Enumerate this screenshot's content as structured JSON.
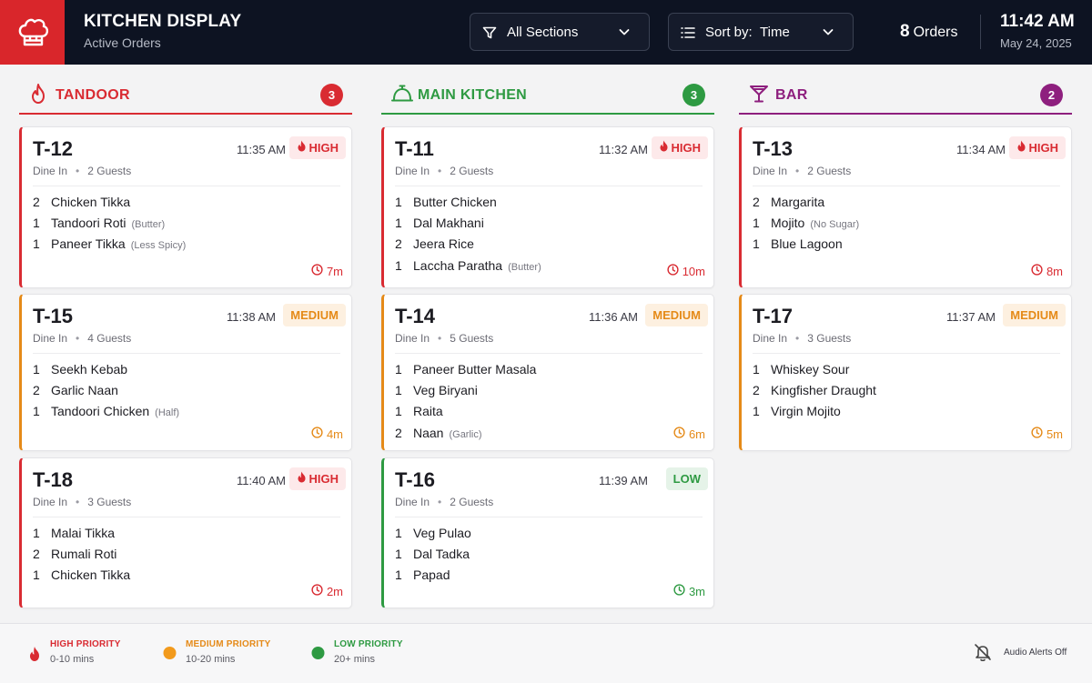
{
  "header": {
    "title": "KITCHEN DISPLAY",
    "subtitle": "Active Orders",
    "sections_filter": "All Sections",
    "sort_prefix": "Sort by:",
    "sort_value": "Time",
    "orders_count": "8",
    "orders_label": "Orders",
    "time": "11:42 AM",
    "date": "May 24, 2025"
  },
  "columns": [
    {
      "name": "TANDOOR",
      "count": "3",
      "color": "#d92b32",
      "icon": "flame-icon",
      "orders": [
        {
          "table": "T-12",
          "time": "11:35 AM",
          "priority": "HIGH",
          "type": "Dine In",
          "guests": "2 Guests",
          "items": [
            {
              "qty": "2",
              "name": "Chicken Tikka",
              "note": ""
            },
            {
              "qty": "1",
              "name": "Tandoori Roti",
              "note": "(Butter)"
            },
            {
              "qty": "1",
              "name": "Paneer Tikka",
              "note": "(Less Spicy)"
            }
          ],
          "elapsed": "7m"
        },
        {
          "table": "T-15",
          "time": "11:38 AM",
          "priority": "MEDIUM",
          "type": "Dine In",
          "guests": "4 Guests",
          "items": [
            {
              "qty": "1",
              "name": "Seekh Kebab",
              "note": ""
            },
            {
              "qty": "2",
              "name": "Garlic Naan",
              "note": ""
            },
            {
              "qty": "1",
              "name": "Tandoori Chicken",
              "note": "(Half)"
            }
          ],
          "elapsed": "4m"
        },
        {
          "table": "T-18",
          "time": "11:40 AM",
          "priority": "HIGH",
          "type": "Dine In",
          "guests": "3 Guests",
          "items": [
            {
              "qty": "1",
              "name": "Malai Tikka",
              "note": ""
            },
            {
              "qty": "2",
              "name": "Rumali Roti",
              "note": ""
            },
            {
              "qty": "1",
              "name": "Chicken Tikka",
              "note": ""
            }
          ],
          "elapsed": "2m"
        }
      ]
    },
    {
      "name": "MAIN KITCHEN",
      "count": "3",
      "color": "#2e9a42",
      "icon": "cloche-icon",
      "orders": [
        {
          "table": "T-11",
          "time": "11:32 AM",
          "priority": "HIGH",
          "type": "Dine In",
          "guests": "2 Guests",
          "items": [
            {
              "qty": "1",
              "name": "Butter Chicken",
              "note": ""
            },
            {
              "qty": "1",
              "name": "Dal Makhani",
              "note": ""
            },
            {
              "qty": "2",
              "name": "Jeera Rice",
              "note": ""
            },
            {
              "qty": "1",
              "name": "Laccha Paratha",
              "note": "(Butter)"
            }
          ],
          "elapsed": "10m"
        },
        {
          "table": "T-14",
          "time": "11:36 AM",
          "priority": "MEDIUM",
          "type": "Dine In",
          "guests": "5 Guests",
          "items": [
            {
              "qty": "1",
              "name": "Paneer Butter Masala",
              "note": ""
            },
            {
              "qty": "1",
              "name": "Veg Biryani",
              "note": ""
            },
            {
              "qty": "1",
              "name": "Raita",
              "note": ""
            },
            {
              "qty": "2",
              "name": "Naan",
              "note": "(Garlic)"
            }
          ],
          "elapsed": "6m"
        },
        {
          "table": "T-16",
          "time": "11:39 AM",
          "priority": "LOW",
          "type": "Dine In",
          "guests": "2 Guests",
          "items": [
            {
              "qty": "1",
              "name": "Veg Pulao",
              "note": ""
            },
            {
              "qty": "1",
              "name": "Dal Tadka",
              "note": ""
            },
            {
              "qty": "1",
              "name": "Papad",
              "note": ""
            }
          ],
          "elapsed": "3m"
        }
      ]
    },
    {
      "name": "BAR",
      "count": "2",
      "color": "#8e1f7e",
      "icon": "cocktail-icon",
      "orders": [
        {
          "table": "T-13",
          "time": "11:34 AM",
          "priority": "HIGH",
          "type": "Dine In",
          "guests": "2 Guests",
          "items": [
            {
              "qty": "2",
              "name": "Margarita",
              "note": ""
            },
            {
              "qty": "1",
              "name": "Mojito",
              "note": "(No Sugar)"
            },
            {
              "qty": "1",
              "name": "Blue Lagoon",
              "note": ""
            }
          ],
          "elapsed": "8m"
        },
        {
          "table": "T-17",
          "time": "11:37 AM",
          "priority": "MEDIUM",
          "type": "Dine In",
          "guests": "3 Guests",
          "items": [
            {
              "qty": "1",
              "name": "Whiskey Sour",
              "note": ""
            },
            {
              "qty": "2",
              "name": "Kingfisher Draught",
              "note": ""
            },
            {
              "qty": "1",
              "name": "Virgin Mojito",
              "note": ""
            }
          ],
          "elapsed": "5m"
        }
      ]
    }
  ],
  "legend": [
    {
      "title": "HIGH PRIORITY",
      "range": "0-10 mins",
      "color": "#d92b32",
      "icon": "flame-icon"
    },
    {
      "title": "MEDIUM PRIORITY",
      "range": "10-20 mins",
      "color": "#f29a1c",
      "icon": "dot-icon"
    },
    {
      "title": "LOW PRIORITY",
      "range": "20+ mins",
      "color": "#2e9a42",
      "icon": "dot-icon"
    }
  ],
  "audio": {
    "label": "Audio Alerts Off",
    "icon": "bell-off-icon"
  }
}
